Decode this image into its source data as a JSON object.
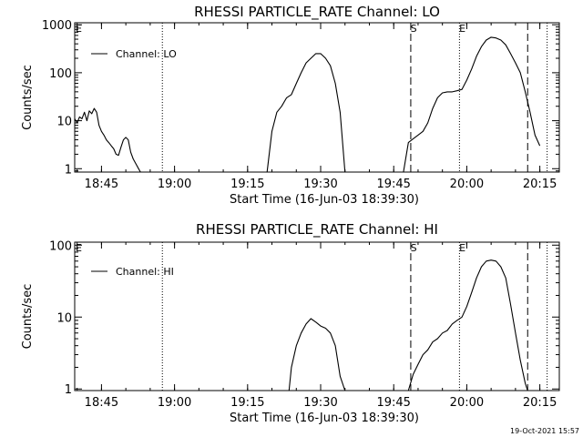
{
  "footer": {
    "timestamp": "19-Oct-2021 15:57"
  },
  "chart_data": [
    {
      "type": "line",
      "title": "RHESSI PARTICLE_RATE Channel: LO",
      "xlabel": "Start Time (16-Jun-03 18:39:30)",
      "ylabel": "Counts/sec",
      "yscale": "log",
      "xlim": [
        "18:39:30",
        "20:19:00"
      ],
      "ylim": [
        0.85,
        1100
      ],
      "x_ticks": [
        "18:45",
        "19:00",
        "19:15",
        "19:30",
        "19:45",
        "20:00",
        "20:15"
      ],
      "y_ticks": [
        "1",
        "10",
        "100",
        "1000"
      ],
      "legend": {
        "position": "top-left",
        "entries": [
          "Channel: LO"
        ]
      },
      "markers": {
        "S": "19:49:00",
        "E": "19:59:00",
        "E_left": "18:39:30"
      },
      "dashed_lines": [
        "19:48:30",
        "20:12:30"
      ],
      "dotted_lines": [
        "18:57:30",
        "19:58:30",
        "20:16:30"
      ],
      "series": [
        {
          "name": "Channel: LO",
          "segments": [
            {
              "x": [
                "18:39:30",
                "18:40:00",
                "18:40:30",
                "18:41:00",
                "18:41:30",
                "18:42:00",
                "18:42:30",
                "18:43:00",
                "18:43:30",
                "18:44:00",
                "18:44:30",
                "18:45:00",
                "18:45:30",
                "18:46:00",
                "18:46:30",
                "18:47:00",
                "18:47:30",
                "18:48:00",
                "18:48:30",
                "18:49:00",
                "18:49:30",
                "18:50:00",
                "18:50:30",
                "18:51:00",
                "18:51:30",
                "18:52:00",
                "18:52:30",
                "18:53:00"
              ],
              "y": [
                11,
                9,
                12,
                11,
                15,
                10,
                16,
                14,
                18,
                15,
                8,
                6,
                5,
                4,
                3.5,
                3,
                2.6,
                2,
                1.9,
                2.8,
                4,
                4.5,
                4,
                2.2,
                1.6,
                1.3,
                1.05,
                0.85
              ]
            },
            {
              "x": [
                "19:19:00",
                "19:20:00",
                "19:21:00",
                "19:22:00",
                "19:23:00",
                "19:24:00",
                "19:25:00",
                "19:26:00",
                "19:27:00",
                "19:28:00",
                "19:29:00",
                "19:30:00",
                "19:31:00",
                "19:32:00",
                "19:33:00",
                "19:34:00",
                "19:35:00"
              ],
              "y": [
                0.85,
                6,
                15,
                20,
                30,
                35,
                60,
                100,
                160,
                200,
                250,
                250,
                200,
                140,
                60,
                15,
                0.85
              ]
            },
            {
              "x": [
                "19:47:00",
                "19:48:00",
                "19:49:00",
                "19:50:00",
                "19:51:00",
                "19:52:00",
                "19:53:00",
                "19:54:00",
                "19:55:00",
                "19:56:00",
                "19:57:00",
                "19:58:00",
                "19:59:00",
                "20:00:00",
                "20:01:00",
                "20:02:00",
                "20:03:00",
                "20:04:00",
                "20:05:00",
                "20:06:00",
                "20:07:00",
                "20:08:00",
                "20:09:00",
                "20:10:00",
                "20:11:00",
                "20:12:00",
                "20:13:00",
                "20:14:00",
                "20:15:00"
              ],
              "y": [
                0.85,
                3.5,
                4.2,
                5,
                6,
                9,
                18,
                30,
                38,
                40,
                40,
                42,
                45,
                70,
                120,
                220,
                350,
                480,
                550,
                530,
                480,
                380,
                250,
                160,
                100,
                40,
                15,
                5,
                3
              ]
            }
          ]
        }
      ]
    },
    {
      "type": "line",
      "title": "RHESSI PARTICLE_RATE Channel: HI",
      "xlabel": "Start Time (16-Jun-03 18:39:30)",
      "ylabel": "Counts/sec",
      "yscale": "log",
      "xlim": [
        "18:39:30",
        "20:19:00"
      ],
      "ylim": [
        0.95,
        110
      ],
      "x_ticks": [
        "18:45",
        "19:00",
        "19:15",
        "19:30",
        "19:45",
        "20:00",
        "20:15"
      ],
      "y_ticks": [
        "1",
        "10",
        "100"
      ],
      "legend": {
        "position": "top-left",
        "entries": [
          "Channel: HI"
        ]
      },
      "markers": {
        "S": "19:49:00",
        "E": "19:59:00",
        "E_left": "18:39:30"
      },
      "dashed_lines": [
        "19:48:30",
        "20:12:30"
      ],
      "dotted_lines": [
        "18:57:30",
        "19:58:30",
        "20:16:30"
      ],
      "series": [
        {
          "name": "Channel: HI",
          "segments": [
            {
              "x": [
                "19:23:30",
                "19:24:00",
                "19:25:00",
                "19:26:00",
                "19:27:00",
                "19:28:00",
                "19:29:00",
                "19:30:00",
                "19:31:00",
                "19:32:00",
                "19:33:00",
                "19:34:00",
                "19:35:00"
              ],
              "y": [
                0.95,
                2,
                4,
                6,
                8,
                9.5,
                8.5,
                7.5,
                7,
                6,
                4,
                1.5,
                0.95
              ]
            },
            {
              "x": [
                "19:48:00",
                "19:49:00",
                "19:50:00",
                "19:51:00",
                "19:52:00",
                "19:53:00",
                "19:54:00",
                "19:55:00",
                "19:56:00",
                "19:57:00",
                "19:58:00",
                "19:59:00",
                "20:00:00",
                "20:01:00",
                "20:02:00",
                "20:03:00",
                "20:04:00",
                "20:05:00",
                "20:06:00",
                "20:07:00",
                "20:08:00",
                "20:09:00",
                "20:10:00",
                "20:11:00",
                "20:12:00",
                "20:12:30"
              ],
              "y": [
                0.95,
                1.6,
                2.2,
                3,
                3.5,
                4.5,
                5,
                6,
                6.5,
                8,
                9,
                10,
                14,
                22,
                35,
                50,
                60,
                62,
                60,
                50,
                35,
                15,
                6,
                2.5,
                1.2,
                0.95
              ]
            }
          ]
        }
      ]
    }
  ]
}
